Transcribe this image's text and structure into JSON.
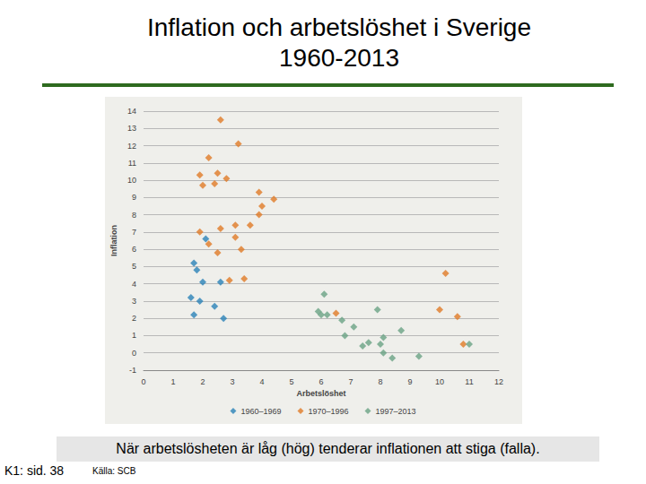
{
  "chart_data": {
    "type": "scatter",
    "title": "Inflation och arbetslöshet i Sverige 1960-2013",
    "x_label": "Arbetslöshet",
    "y_label": "Inflation",
    "xlim": [
      0,
      12
    ],
    "xticks": [
      0,
      1,
      2,
      3,
      4,
      5,
      6,
      7,
      8,
      9,
      10,
      11,
      12
    ],
    "ylim": [
      -1,
      14
    ],
    "yticks": [
      -1,
      0,
      1,
      2,
      3,
      4,
      5,
      6,
      7,
      8,
      9,
      10,
      11,
      12,
      13,
      14
    ],
    "grid": true,
    "legend": "bottom",
    "marker": "diamond",
    "annotations": [
      "När arbetslösheten är låg (hög) tenderar inflationen att stiga (falla).",
      "K1: sid. 38",
      "Källa: SCB"
    ],
    "series": [
      {
        "name": "1960–1969",
        "color": "#2b82b8",
        "values": [
          [
            1.7,
            5.2
          ],
          [
            1.8,
            4.8
          ],
          [
            2.1,
            6.6
          ],
          [
            2.0,
            4.1
          ],
          [
            1.6,
            3.2
          ],
          [
            1.9,
            3.0
          ],
          [
            2.6,
            4.1
          ],
          [
            2.4,
            2.7
          ],
          [
            1.7,
            2.2
          ],
          [
            2.7,
            2.0
          ]
        ]
      },
      {
        "name": "1970–1996",
        "color": "#e07b27",
        "values": [
          [
            2.6,
            13.5
          ],
          [
            3.2,
            12.1
          ],
          [
            2.2,
            11.3
          ],
          [
            1.9,
            10.3
          ],
          [
            2.5,
            10.4
          ],
          [
            2.0,
            9.7
          ],
          [
            2.4,
            9.8
          ],
          [
            2.8,
            10.1
          ],
          [
            3.9,
            9.3
          ],
          [
            4.0,
            8.5
          ],
          [
            4.4,
            8.9
          ],
          [
            3.9,
            8.0
          ],
          [
            3.6,
            7.4
          ],
          [
            3.1,
            7.4
          ],
          [
            2.6,
            7.2
          ],
          [
            1.9,
            7.0
          ],
          [
            2.2,
            6.3
          ],
          [
            3.1,
            6.7
          ],
          [
            3.3,
            6.0
          ],
          [
            2.5,
            5.8
          ],
          [
            2.9,
            4.2
          ],
          [
            3.4,
            4.3
          ],
          [
            10.2,
            4.6
          ],
          [
            10.0,
            2.5
          ],
          [
            10.6,
            2.1
          ],
          [
            10.8,
            0.5
          ],
          [
            6.5,
            2.3
          ]
        ]
      },
      {
        "name": "1997–2013",
        "color": "#6aa384",
        "values": [
          [
            6.1,
            3.4
          ],
          [
            5.9,
            2.4
          ],
          [
            6.0,
            2.2
          ],
          [
            6.2,
            2.2
          ],
          [
            6.7,
            1.9
          ],
          [
            7.1,
            1.5
          ],
          [
            6.8,
            1.0
          ],
          [
            7.9,
            2.5
          ],
          [
            8.7,
            1.3
          ],
          [
            8.1,
            0.9
          ],
          [
            7.6,
            0.6
          ],
          [
            7.4,
            0.4
          ],
          [
            8.0,
            0.5
          ],
          [
            8.1,
            0.0
          ],
          [
            8.4,
            -0.3
          ],
          [
            9.3,
            -0.2
          ],
          [
            11.0,
            0.5
          ]
        ]
      }
    ]
  }
}
